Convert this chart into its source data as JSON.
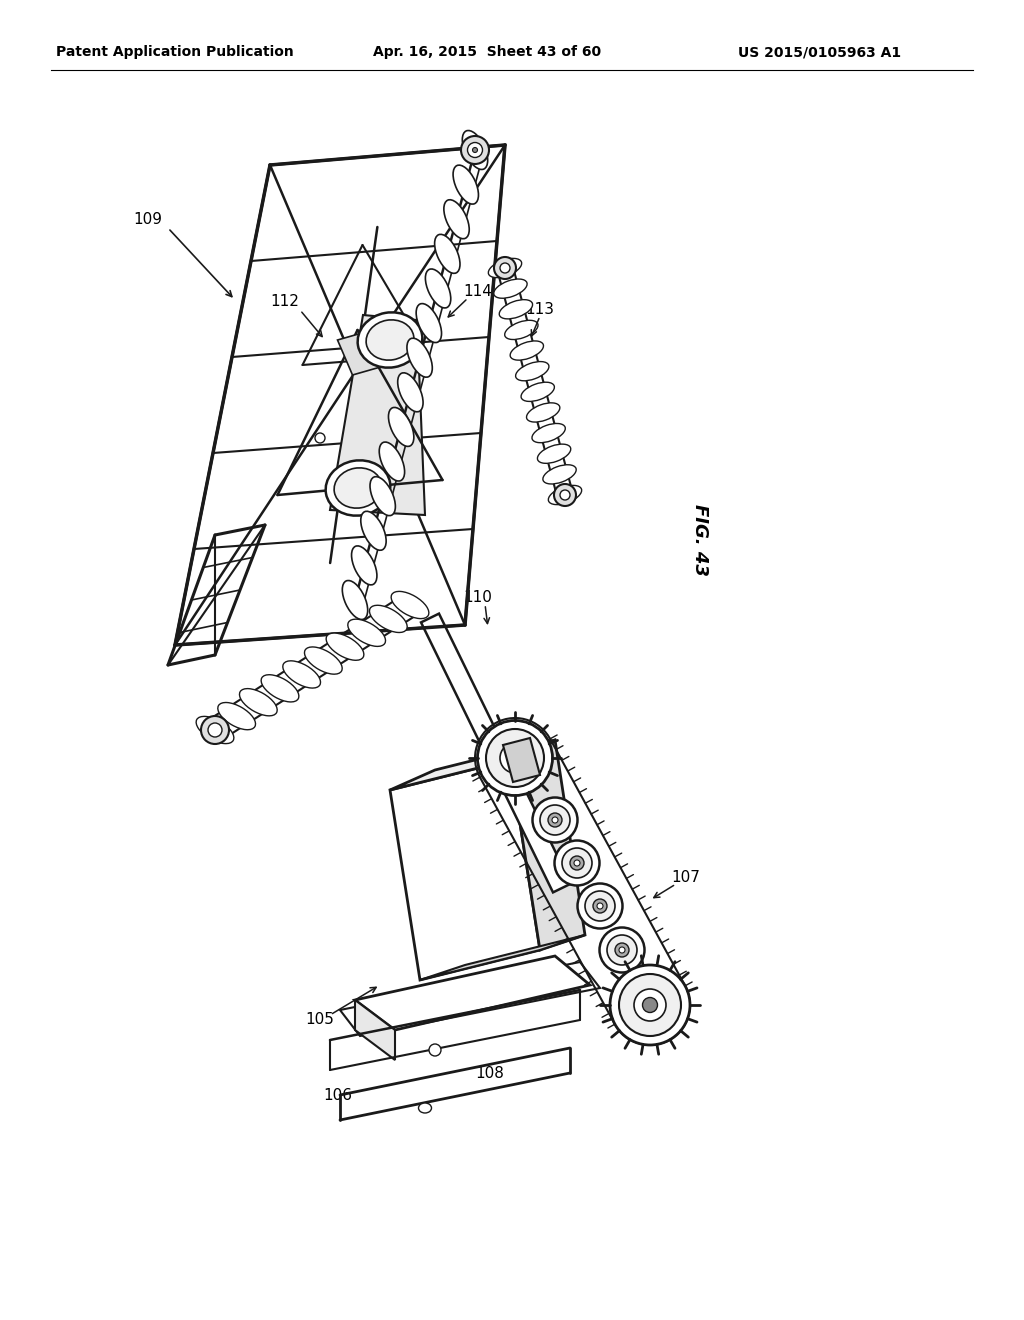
{
  "title_left": "Patent Application Publication",
  "title_mid": "Apr. 16, 2015  Sheet 43 of 60",
  "title_right": "US 2015/0105963 A1",
  "fig_label": "FIG. 43",
  "background_color": "#ffffff",
  "line_color": "#1a1a1a"
}
